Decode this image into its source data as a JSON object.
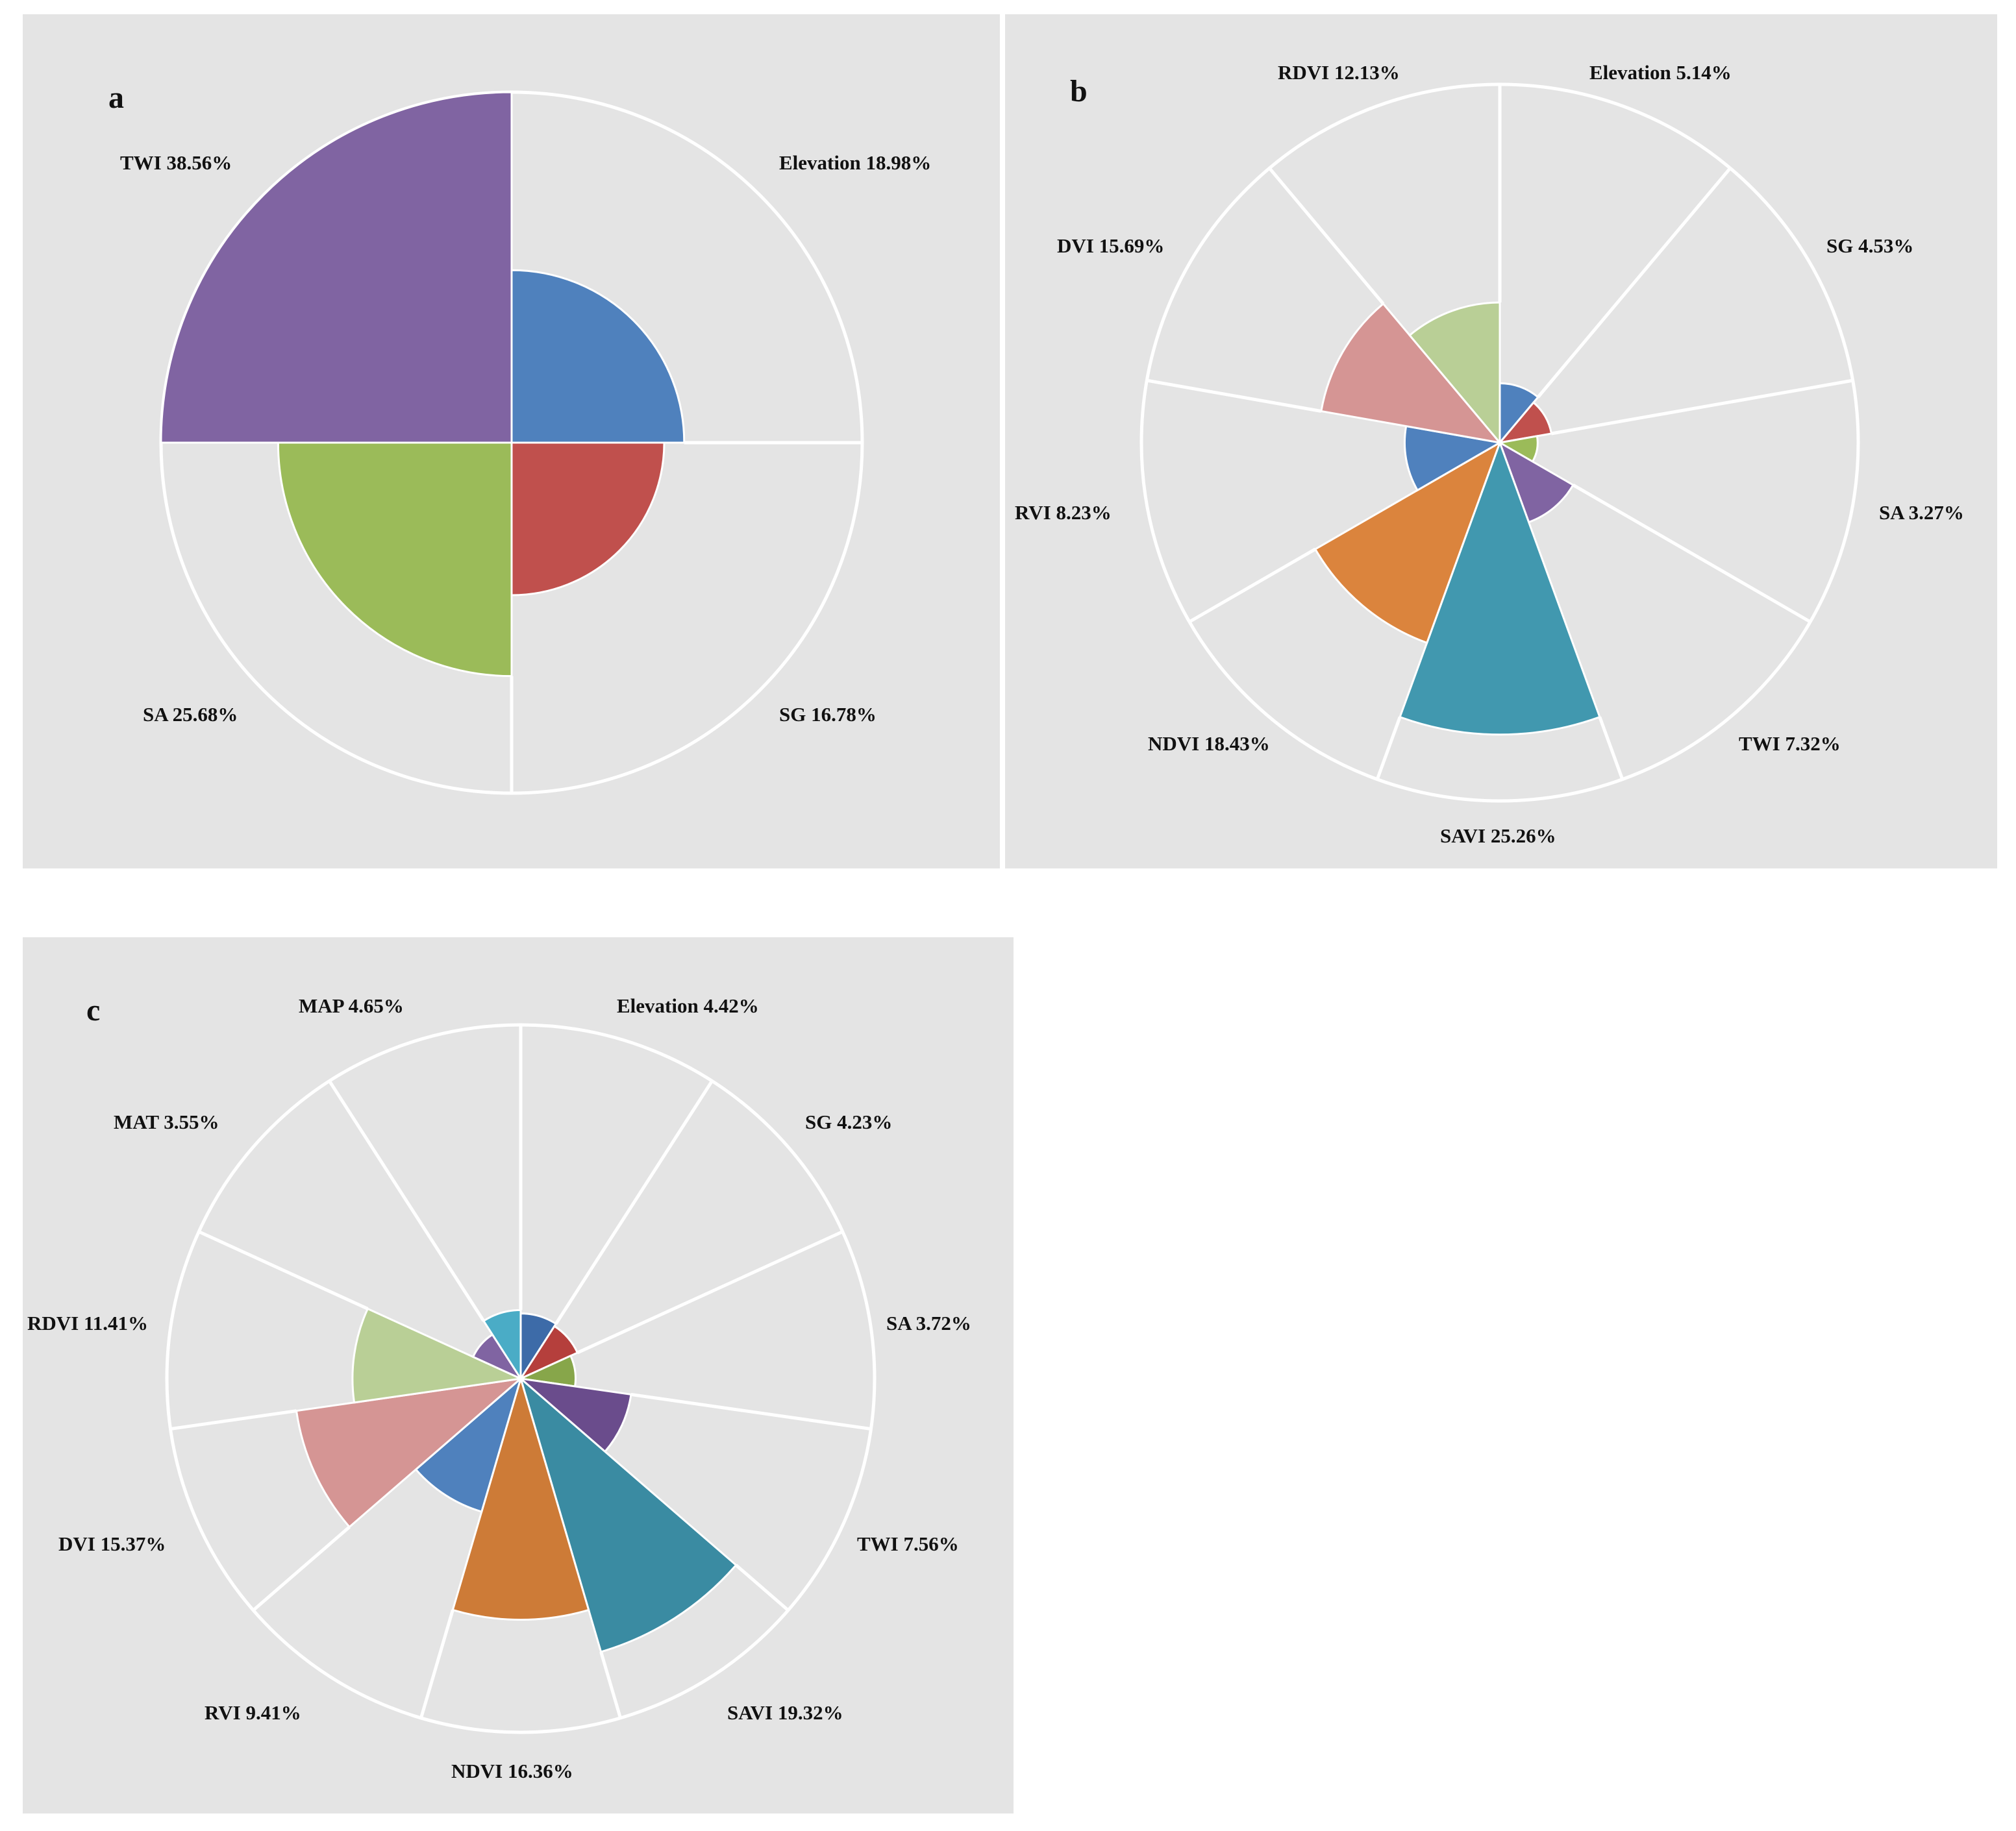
{
  "chart_data": [
    {
      "type": "pie",
      "subtype": "nightingale-rose",
      "panel_label": "a",
      "categories": [
        "Elevation",
        "SG",
        "SA",
        "TWI"
      ],
      "values": [
        18.98,
        16.78,
        25.68,
        38.56
      ],
      "labels": [
        "Elevation 18.98%",
        "SG 16.78%",
        "SA 25.68%",
        "TWI 38.56%"
      ],
      "colors": [
        "#4f81bd",
        "#c0504d",
        "#9bbb59",
        "#8064a2"
      ],
      "max_value": 38.56,
      "grid": true
    },
    {
      "type": "pie",
      "subtype": "nightingale-rose",
      "panel_label": "b",
      "categories": [
        "Elevation",
        "SG",
        "SA",
        "TWI",
        "SAVI",
        "NDVI",
        "RVI",
        "DVI",
        "RDVI"
      ],
      "values": [
        5.14,
        4.53,
        3.27,
        7.32,
        25.26,
        18.43,
        8.23,
        15.69,
        12.13
      ],
      "labels": [
        "Elevation 5.14%",
        "SG 4.53%",
        "SA 3.27%",
        "TWI 7.32%",
        "SAVI 25.26%",
        "NDVI 18.43%",
        "RVI 8.23%",
        "DVI 15.69%",
        "RDVI 12.13%"
      ],
      "colors": [
        "#4f81bd",
        "#c0504d",
        "#9bbb59",
        "#8064a2",
        "#4198af",
        "#db843d",
        "#4f81bd",
        "#d59594",
        "#b9cf96"
      ],
      "max_value": 31,
      "grid": true
    },
    {
      "type": "pie",
      "subtype": "nightingale-rose",
      "panel_label": "c",
      "categories": [
        "Elevation",
        "SG",
        "SA",
        "TWI",
        "SAVI",
        "NDVI",
        "RVI",
        "DVI",
        "RDVI",
        "MAT",
        "MAP"
      ],
      "values": [
        4.42,
        4.23,
        3.72,
        7.56,
        19.32,
        16.36,
        9.41,
        15.37,
        11.41,
        3.55,
        4.65
      ],
      "labels": [
        "Elevation 4.42%",
        "SG 4.23%",
        "SA 3.72%",
        "TWI 7.56%",
        "SAVI 19.32%",
        "NDVI 16.36%",
        "RVI 9.41%",
        "DVI 15.37%",
        "RDVI 11.41%",
        "MAT 3.55%",
        "MAP 4.65%"
      ],
      "colors": [
        "#3d6ba8",
        "#b53f3c",
        "#87a64a",
        "#6a4c8c",
        "#3a8ba2",
        "#cd7b37",
        "#4f81bd",
        "#d59594",
        "#b9cf96",
        "#8064a2",
        "#4aacc6"
      ],
      "max_value": 24,
      "grid": true
    }
  ]
}
